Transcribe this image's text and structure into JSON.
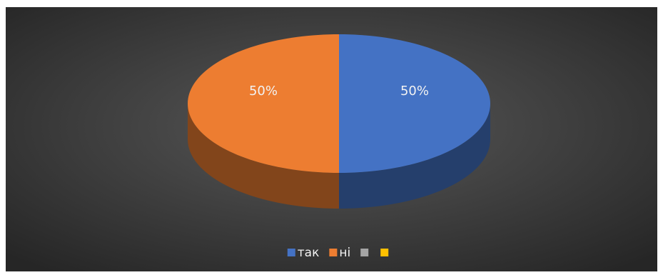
{
  "chart_data": {
    "type": "pie3d",
    "categories": [
      "так",
      "ні",
      null,
      null
    ],
    "values": [
      50,
      50,
      0,
      0
    ],
    "value_labels": [
      "50%",
      "50%",
      null,
      null
    ],
    "colors": [
      "#4472c4",
      "#ed7d31",
      "#a5a5a5",
      "#ffc000"
    ],
    "legend": "bottom"
  }
}
